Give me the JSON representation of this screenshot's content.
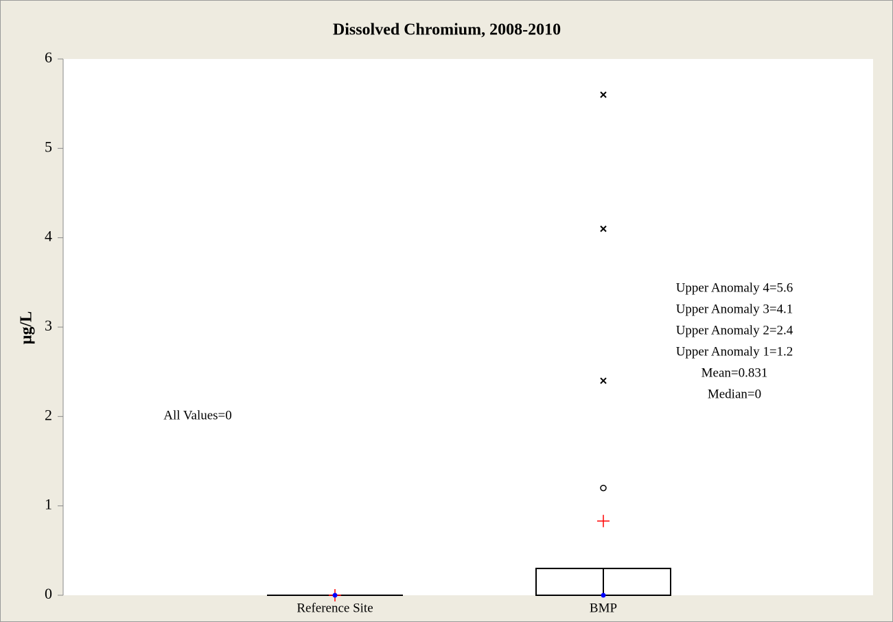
{
  "chart_data": {
    "type": "box",
    "title": "Dissolved Chromium, 2008-2010",
    "ylabel": "µg/L",
    "categories": [
      "Reference Site",
      "BMP"
    ],
    "boxes": [
      {
        "q1": 0,
        "median": 0,
        "q3": 0,
        "mean": 0,
        "outliers": [],
        "outlier_markers": []
      },
      {
        "q1": 0,
        "median": 0,
        "q3": 0.3,
        "mean": 0.831,
        "outliers": [
          1.2,
          2.4,
          4.1,
          5.6
        ],
        "outlier_markers": [
          "circle",
          "x",
          "x",
          "x"
        ]
      }
    ],
    "annotations": [
      {
        "category": 0,
        "lines": [
          "All Values=0"
        ]
      },
      {
        "category": 1,
        "lines": [
          "Upper Anomaly 4=5.6",
          "Upper Anomaly 3=4.1",
          "Upper Anomaly 2=2.4",
          "Upper Anomaly 1=1.2",
          "Mean=0.831",
          "Median=0"
        ]
      }
    ],
    "ylim": [
      0,
      6
    ],
    "yticks": [
      0,
      1,
      2,
      3,
      4,
      5,
      6
    ],
    "box_color": "#000000",
    "mean_color": "#ff0000",
    "median_color": "#0000ff"
  }
}
